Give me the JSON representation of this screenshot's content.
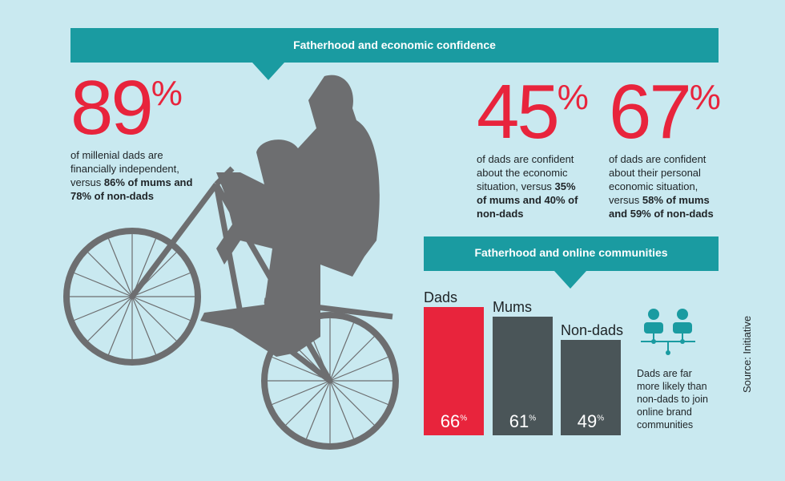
{
  "banner_economic": "Fatherhood and economic confidence",
  "stats": [
    {
      "value": 89,
      "unit": "%",
      "text": "of millenial dads are financially independent, versus ",
      "bold": "86% of mums and 78% of non-dads"
    },
    {
      "value": 45,
      "unit": "%",
      "text": "of dads are confident about the economic situation, versus ",
      "bold": "35% of mums and 40% of non-dads"
    },
    {
      "value": 67,
      "unit": "%",
      "text": "of dads are confident about their personal economic situation, versus ",
      "bold": "58% of mums and 59% of non-dads"
    }
  ],
  "banner_online": "Fatherhood and online communities",
  "chart": {
    "type": "bar",
    "categories": [
      "Dads",
      "Mums",
      "Non-dads"
    ],
    "values": [
      66,
      61,
      49
    ],
    "unit": "%",
    "colors": [
      "#e8243c",
      "#4a5558",
      "#4a5558"
    ]
  },
  "note": "Dads are far more likely than non-dads to join online brand communities",
  "source": "Source: Initiative"
}
